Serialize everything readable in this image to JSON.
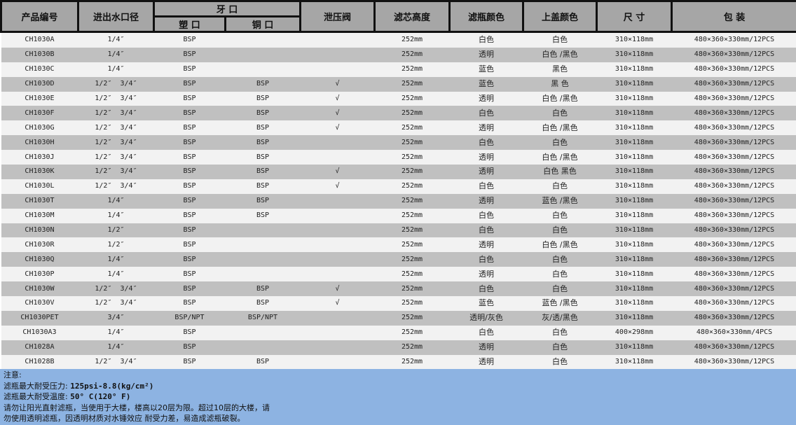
{
  "header": {
    "code": "产品编号",
    "port": "进出水口径",
    "thread": "牙 口",
    "plastic": "塑 口",
    "copper": "铜 口",
    "valve": "泄压阀",
    "height": "滤芯高度",
    "bottle_color": "滤瓶颜色",
    "cap_color": "上盖颜色",
    "size": "尺 寸",
    "pack": "包 装"
  },
  "rows": [
    [
      "CH1030A",
      "1/4″",
      "BSP",
      "",
      "",
      "252mm",
      "白色",
      "白色",
      "310×118mm",
      "480×360×330mm/12PCS"
    ],
    [
      "CH1030B",
      "1/4″",
      "BSP",
      "",
      "",
      "252mm",
      "透明",
      "白色 /黑色",
      "310×118mm",
      "480×360×330mm/12PCS"
    ],
    [
      "CH1030C",
      "1/4″",
      "BSP",
      "",
      "",
      "252mm",
      "蓝色",
      "黑色",
      "310×118mm",
      "480×360×330mm/12PCS"
    ],
    [
      "CH1030D",
      "1/2″  3/4″",
      "BSP",
      "BSP",
      "√",
      "252mm",
      "蓝色",
      "黑 色",
      "310×118mm",
      "480×360×330mm/12PCS"
    ],
    [
      "CH1030E",
      "1/2″  3/4″",
      "BSP",
      "BSP",
      "√",
      "252mm",
      "透明",
      "白色 /黑色",
      "310×118mm",
      "480×360×330mm/12PCS"
    ],
    [
      "CH1030F",
      "1/2″  3/4″",
      "BSP",
      "BSP",
      "√",
      "252mm",
      "白色",
      "白色",
      "310×118mm",
      "480×360×330mm/12PCS"
    ],
    [
      "CH1030G",
      "1/2″  3/4″",
      "BSP",
      "BSP",
      "√",
      "252mm",
      "透明",
      "白色 /黑色",
      "310×118mm",
      "480×360×330mm/12PCS"
    ],
    [
      "CH1030H",
      "1/2″  3/4″",
      "BSP",
      "BSP",
      "",
      "252mm",
      "白色",
      "白色",
      "310×118mm",
      "480×360×330mm/12PCS"
    ],
    [
      "CH1030J",
      "1/2″  3/4″",
      "BSP",
      "BSP",
      "",
      "252mm",
      "透明",
      "白色 /黑色",
      "310×118mm",
      "480×360×330mm/12PCS"
    ],
    [
      "CH1030K",
      "1/2″  3/4″",
      "BSP",
      "BSP",
      "√",
      "252mm",
      "透明",
      "白色 黑色",
      "310×118mm",
      "480×360×330mm/12PCS"
    ],
    [
      "CH1030L",
      "1/2″  3/4″",
      "BSP",
      "BSP",
      "√",
      "252mm",
      "白色",
      "白色",
      "310×118mm",
      "480×360×330mm/12PCS"
    ],
    [
      "CH1030T",
      "1/4″",
      "BSP",
      "BSP",
      "",
      "252mm",
      "透明",
      "蓝色 /黑色",
      "310×118mm",
      "480×360×330mm/12PCS"
    ],
    [
      "CH1030M",
      "1/4″",
      "BSP",
      "BSP",
      "",
      "252mm",
      "白色",
      "白色",
      "310×118mm",
      "480×360×330mm/12PCS"
    ],
    [
      "CH1030N",
      "1/2″",
      "BSP",
      "",
      "",
      "252mm",
      "白色",
      "白色",
      "310×118mm",
      "480×360×330mm/12PCS"
    ],
    [
      "CH1030R",
      "1/2″",
      "BSP",
      "",
      "",
      "252mm",
      "透明",
      "白色 /黑色",
      "310×118mm",
      "480×360×330mm/12PCS"
    ],
    [
      "CH1030Q",
      "1/4″",
      "BSP",
      "",
      "",
      "252mm",
      "白色",
      "白色",
      "310×118mm",
      "480×360×330mm/12PCS"
    ],
    [
      "CH1030P",
      "1/4″",
      "BSP",
      "",
      "",
      "252mm",
      "透明",
      "白色",
      "310×118mm",
      "480×360×330mm/12PCS"
    ],
    [
      "CH1030W",
      "1/2″  3/4″",
      "BSP",
      "BSP",
      "√",
      "252mm",
      "白色",
      "白色",
      "310×118mm",
      "480×360×330mm/12PCS"
    ],
    [
      "CH1030V",
      "1/2″  3/4″",
      "BSP",
      "BSP",
      "√",
      "252mm",
      "蓝色",
      "蓝色 /黑色",
      "310×118mm",
      "480×360×330mm/12PCS"
    ],
    [
      "CH1030PET",
      "3/4″",
      "BSP/NPT",
      "BSP/NPT",
      "",
      "252mm",
      "透明/灰色",
      "灰/透/黑色",
      "310×118mm",
      "480×360×330mm/12PCS"
    ],
    [
      "CH1030A3",
      "1/4″",
      "BSP",
      "",
      "",
      "252mm",
      "白色",
      "白色",
      "400×298mm",
      "480×360×330mm/4PCS"
    ],
    [
      "CH1028A",
      "1/4″",
      "BSP",
      "",
      "",
      "252mm",
      "透明",
      "白色",
      "310×118mm",
      "480×360×330mm/12PCS"
    ],
    [
      "CH1028B",
      "1/2″  3/4″",
      "BSP",
      "BSP",
      "",
      "252mm",
      "透明",
      "白色",
      "310×118mm",
      "480×360×330mm/12PCS"
    ]
  ],
  "notes": {
    "title": "注意:",
    "pressure_label": "滤瓶最大耐受压力:",
    "pressure_value": "125psi-8.8(kg/cm²)",
    "temp_label": "滤瓶最大耐受温度:",
    "temp_value": "50° C(120° F)",
    "line1": "请勿让阳光直射滤瓶，当使用于大楼，楼高以20层为限。超过10层的大楼，请",
    "line2": "勿使用透明滤瓶，因透明材质对水锤效应 耐受力差，易造成滤瓶破裂。"
  },
  "colors": {
    "header_bg": "#a6a6a6",
    "row_light": "#f2f2f2",
    "row_dark": "#c0c0c0",
    "notes_bg": "#8db3e2"
  }
}
